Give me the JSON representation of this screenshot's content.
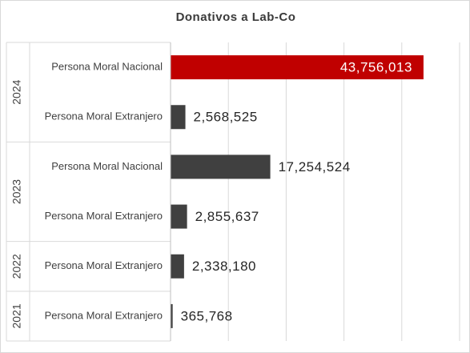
{
  "chart_data": {
    "type": "bar",
    "orientation": "horizontal",
    "title": "Donativos a Lab-Co",
    "xlabel": "",
    "ylabel": "",
    "xlim": [
      0,
      50000000
    ],
    "grid": true,
    "legend": "none",
    "groups": [
      {
        "label": "2024",
        "items": [
          {
            "category": "Persona Moral Nacional",
            "value": 43756013,
            "value_label": "43,756,013",
            "highlight": true
          },
          {
            "category": "Persona Moral Extranjero",
            "value": 2568525,
            "value_label": "2,568,525"
          }
        ]
      },
      {
        "label": "2023",
        "items": [
          {
            "category": "Persona Moral Nacional",
            "value": 17254524,
            "value_label": "17,254,524"
          },
          {
            "category": "Persona Moral Extranjero",
            "value": 2855637,
            "value_label": "2,855,637"
          }
        ]
      },
      {
        "label": "2022",
        "items": [
          {
            "category": "Persona Moral Extranjero",
            "value": 2338180,
            "value_label": "2,338,180"
          }
        ]
      },
      {
        "label": "2021",
        "items": [
          {
            "category": "Persona Moral Extranjero",
            "value": 365768,
            "value_label": "365,768"
          }
        ]
      }
    ],
    "colors": {
      "bar": "#404040",
      "highlight": "#c00000",
      "grid": "#d9d9d9",
      "text": "#404040"
    }
  }
}
